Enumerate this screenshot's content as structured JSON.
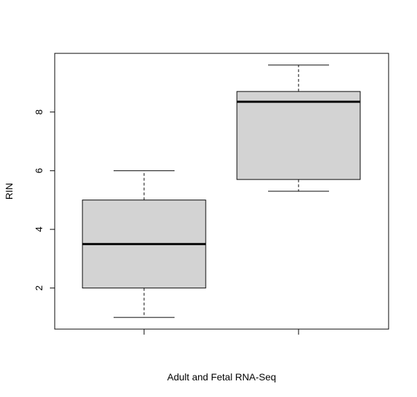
{
  "chart_data": {
    "type": "boxplot",
    "title": "",
    "xlabel": "Adult and Fetal RNA-Seq",
    "ylabel": "RIN",
    "ylim": [
      0.6,
      10.0
    ],
    "y_ticks": [
      2,
      4,
      6,
      8
    ],
    "grid": false,
    "legend": "none",
    "categories": [
      "",
      ""
    ],
    "boxes": [
      {
        "whisker_low": 1.0,
        "q1": 2.0,
        "median": 3.5,
        "q3": 5.0,
        "whisker_high": 6.0
      },
      {
        "whisker_low": 5.3,
        "q1": 5.7,
        "median": 8.35,
        "q3": 8.7,
        "whisker_high": 9.6
      }
    ],
    "colors": {
      "box_fill": "#d3d3d3",
      "stroke": "#000000",
      "background": "#ffffff"
    }
  }
}
